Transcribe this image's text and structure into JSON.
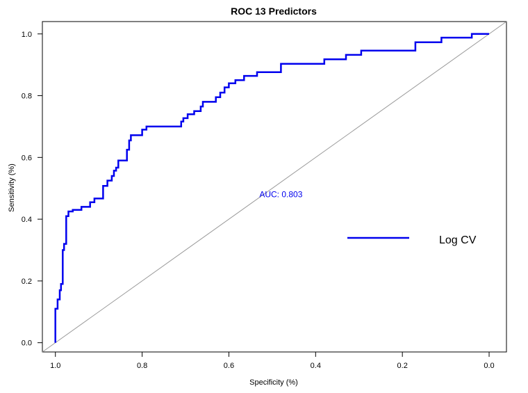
{
  "chart_data": {
    "type": "line",
    "title": "ROC 13 Predictors",
    "xlabel": "Specificity (%)",
    "ylabel": "Sensitivity (%)",
    "xlim": [
      1.03,
      -0.04
    ],
    "ylim": [
      -0.03,
      1.04
    ],
    "x_reversed": true,
    "x_ticks": [
      1.0,
      0.8,
      0.6,
      0.4,
      0.2,
      0.0
    ],
    "x_tick_labels": [
      "1.0",
      "0.8",
      "0.6",
      "0.4",
      "0.2",
      "0.0"
    ],
    "y_ticks": [
      0.0,
      0.2,
      0.4,
      0.6,
      0.8,
      1.0
    ],
    "y_tick_labels": [
      "0.0",
      "0.2",
      "0.4",
      "0.6",
      "0.8",
      "1.0"
    ],
    "grid": false,
    "legend_position": "right",
    "auc_text": "AUC: 0.803",
    "auc_position": [
      0.48,
      0.48
    ],
    "line_color": "#0000ee",
    "diagonal_color": "#999999",
    "series": [
      {
        "name": "Log CV",
        "color": "#0000ee",
        "points": [
          [
            1.0,
            0.0
          ],
          [
            1.0,
            0.11
          ],
          [
            0.995,
            0.11
          ],
          [
            0.995,
            0.14
          ],
          [
            0.99,
            0.14
          ],
          [
            0.99,
            0.17
          ],
          [
            0.987,
            0.17
          ],
          [
            0.987,
            0.19
          ],
          [
            0.983,
            0.19
          ],
          [
            0.983,
            0.3
          ],
          [
            0.98,
            0.3
          ],
          [
            0.98,
            0.32
          ],
          [
            0.975,
            0.32
          ],
          [
            0.975,
            0.41
          ],
          [
            0.97,
            0.41
          ],
          [
            0.97,
            0.425
          ],
          [
            0.96,
            0.425
          ],
          [
            0.96,
            0.43
          ],
          [
            0.94,
            0.43
          ],
          [
            0.94,
            0.44
          ],
          [
            0.92,
            0.44
          ],
          [
            0.92,
            0.455
          ],
          [
            0.91,
            0.455
          ],
          [
            0.91,
            0.467
          ],
          [
            0.89,
            0.467
          ],
          [
            0.89,
            0.508
          ],
          [
            0.88,
            0.508
          ],
          [
            0.88,
            0.525
          ],
          [
            0.87,
            0.525
          ],
          [
            0.87,
            0.54
          ],
          [
            0.865,
            0.54
          ],
          [
            0.865,
            0.557
          ],
          [
            0.86,
            0.557
          ],
          [
            0.86,
            0.567
          ],
          [
            0.855,
            0.567
          ],
          [
            0.855,
            0.59
          ],
          [
            0.835,
            0.59
          ],
          [
            0.835,
            0.625
          ],
          [
            0.83,
            0.625
          ],
          [
            0.83,
            0.655
          ],
          [
            0.826,
            0.655
          ],
          [
            0.826,
            0.672
          ],
          [
            0.8,
            0.672
          ],
          [
            0.8,
            0.69
          ],
          [
            0.79,
            0.69
          ],
          [
            0.79,
            0.7
          ],
          [
            0.71,
            0.7
          ],
          [
            0.71,
            0.716
          ],
          [
            0.705,
            0.716
          ],
          [
            0.705,
            0.727
          ],
          [
            0.695,
            0.727
          ],
          [
            0.695,
            0.74
          ],
          [
            0.68,
            0.74
          ],
          [
            0.68,
            0.75
          ],
          [
            0.665,
            0.75
          ],
          [
            0.665,
            0.765
          ],
          [
            0.66,
            0.765
          ],
          [
            0.66,
            0.78
          ],
          [
            0.63,
            0.78
          ],
          [
            0.63,
            0.795
          ],
          [
            0.62,
            0.795
          ],
          [
            0.62,
            0.81
          ],
          [
            0.61,
            0.81
          ],
          [
            0.61,
            0.827
          ],
          [
            0.6,
            0.827
          ],
          [
            0.6,
            0.84
          ],
          [
            0.585,
            0.84
          ],
          [
            0.585,
            0.85
          ],
          [
            0.565,
            0.85
          ],
          [
            0.565,
            0.864
          ],
          [
            0.535,
            0.864
          ],
          [
            0.535,
            0.876
          ],
          [
            0.48,
            0.876
          ],
          [
            0.48,
            0.903
          ],
          [
            0.38,
            0.903
          ],
          [
            0.38,
            0.918
          ],
          [
            0.33,
            0.918
          ],
          [
            0.33,
            0.932
          ],
          [
            0.295,
            0.932
          ],
          [
            0.295,
            0.946
          ],
          [
            0.17,
            0.946
          ],
          [
            0.17,
            0.973
          ],
          [
            0.11,
            0.973
          ],
          [
            0.11,
            0.988
          ],
          [
            0.04,
            0.988
          ],
          [
            0.04,
            1.0
          ],
          [
            0.0,
            1.0
          ]
        ]
      }
    ]
  }
}
